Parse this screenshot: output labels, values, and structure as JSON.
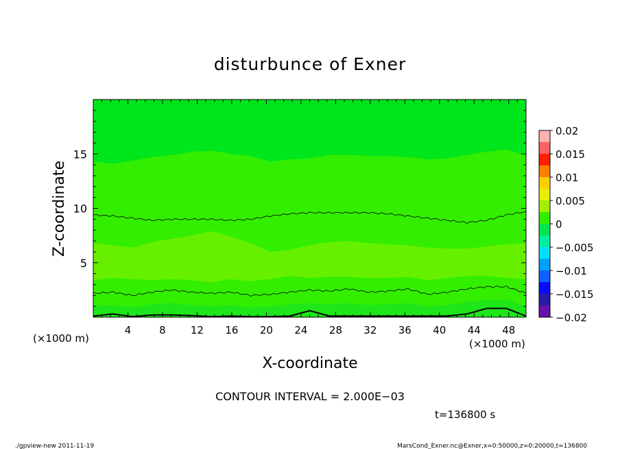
{
  "chart_data": {
    "type": "heatmap",
    "title": "disturbunce of Exner",
    "xlabel": "X-coordinate",
    "ylabel": "Z-coordinate",
    "x_unit_left": "(×1000 m)",
    "x_unit_right": "(×1000 m)",
    "xlim": [
      0,
      50
    ],
    "ylim": [
      0,
      20
    ],
    "x_ticks": [
      4,
      8,
      12,
      16,
      20,
      24,
      28,
      32,
      36,
      40,
      44,
      48
    ],
    "y_ticks": [
      5,
      10,
      15
    ],
    "colorbar": {
      "ticks": [
        0.02,
        0.015,
        0.01,
        0.005,
        0,
        -0.005,
        -0.01,
        -0.015,
        -0.02
      ],
      "tick_labels": [
        "0.02",
        "0.015",
        "0.01",
        "0.005",
        "0",
        "−0.005",
        "−0.01",
        "−0.015",
        "−0.02"
      ],
      "range": [
        -0.02,
        0.02
      ],
      "levels": 16
    },
    "contour_interval_text": "CONTOUR INTERVAL = 2.000E−03",
    "contour_lines": [
      {
        "z": [
          9.4,
          9.3,
          9.1,
          8.9,
          9.0,
          9.0,
          9.0,
          8.9,
          9.0,
          9.3,
          9.5,
          9.6,
          9.6,
          9.6,
          9.6,
          9.5,
          9.3,
          9.1,
          8.9,
          8.7,
          8.9,
          9.4,
          9.7
        ]
      },
      {
        "z": [
          2.2,
          2.3,
          2.0,
          2.3,
          2.5,
          2.3,
          2.2,
          2.3,
          2.0,
          2.1,
          2.3,
          2.5,
          2.4,
          2.6,
          2.3,
          2.4,
          2.6,
          2.1,
          2.3,
          2.6,
          2.8,
          2.8,
          2.2
        ]
      }
    ],
    "filled_bands": [
      {
        "level": -0.002,
        "color": "#00e639",
        "upper": [
          17.6,
          17.4,
          17.5,
          17.8,
          18.0,
          18.3,
          18.5,
          18.5,
          18.2,
          17.9,
          17.8,
          17.5,
          17.5,
          17.6,
          17.6,
          17.7,
          17.7,
          17.6,
          17.5,
          17.6,
          17.9,
          17.8,
          17.6
        ]
      },
      {
        "level": -0.004,
        "color": "#00e623",
        "upper": [
          14.3,
          14.1,
          14.4,
          14.7,
          14.9,
          15.2,
          15.3,
          15.0,
          14.8,
          14.3,
          14.5,
          14.6,
          14.9,
          14.9,
          14.8,
          14.8,
          14.7,
          14.5,
          14.6,
          14.9,
          15.2,
          15.4,
          14.9
        ]
      }
    ],
    "time_label": "t=136800 s",
    "footer_left": "./gpview-new   2011-11-19",
    "footer_right": "MarsCond_Exner.nc@Exner,x=0:50000,z=0:20000,t=136800"
  }
}
